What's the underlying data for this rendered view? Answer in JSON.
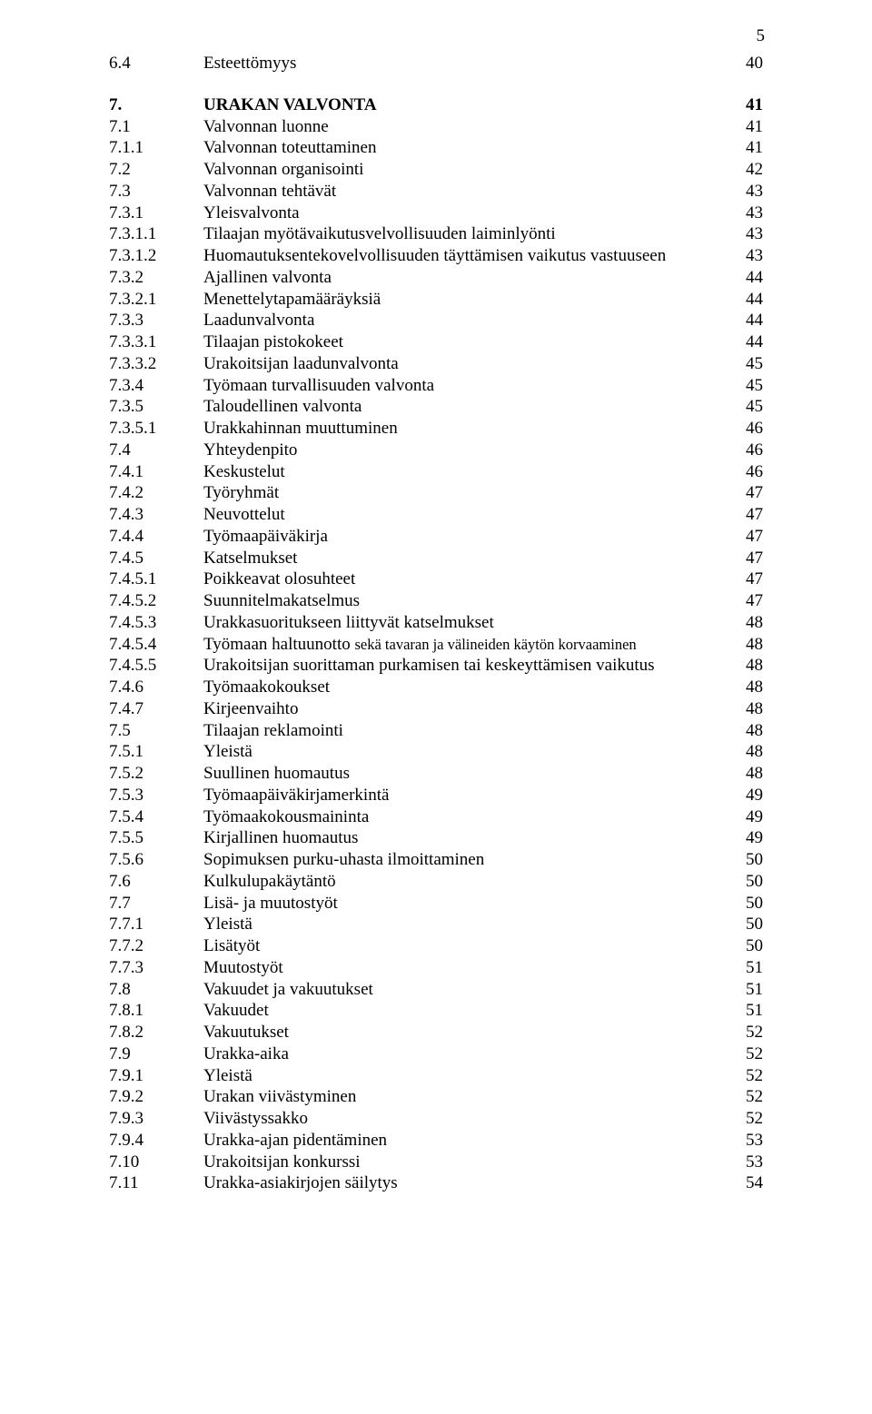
{
  "pageNumber": "5",
  "entries": [
    {
      "num": "6.4",
      "label": "Esteettömyys",
      "page": "40",
      "spaceBefore": false,
      "bold": false
    },
    {
      "num": "7.",
      "label": "URAKAN VALVONTA",
      "page": "41",
      "spaceBefore": true,
      "bold": true
    },
    {
      "num": "7.1",
      "label": "Valvonnan luonne",
      "page": "41",
      "spaceBefore": false,
      "bold": false
    },
    {
      "num": "7.1.1",
      "label": "Valvonnan toteuttaminen",
      "page": "41",
      "spaceBefore": false,
      "bold": false
    },
    {
      "num": "7.2",
      "label": "Valvonnan organisointi",
      "page": "42",
      "spaceBefore": false,
      "bold": false
    },
    {
      "num": "7.3",
      "label": "Valvonnan tehtävät",
      "page": "43",
      "spaceBefore": false,
      "bold": false
    },
    {
      "num": "7.3.1",
      "label": "Yleisvalvonta",
      "page": "43",
      "spaceBefore": false,
      "bold": false
    },
    {
      "num": "7.3.1.1",
      "label": "Tilaajan myötävaikutusvelvollisuuden laiminlyönti",
      "page": "43",
      "spaceBefore": false,
      "bold": false
    },
    {
      "num": "7.3.1.2",
      "label": "Huomautuksentekovelvollisuuden täyttämisen vaikutus vastuuseen",
      "page": "43",
      "spaceBefore": false,
      "bold": false
    },
    {
      "num": "7.3.2",
      "label": "Ajallinen valvonta",
      "page": "44",
      "spaceBefore": false,
      "bold": false
    },
    {
      "num": "7.3.2.1",
      "label": "Menettelytapamääräyksiä",
      "page": "44",
      "spaceBefore": false,
      "bold": false
    },
    {
      "num": "7.3.3",
      "label": "Laadunvalvonta",
      "page": "44",
      "spaceBefore": false,
      "bold": false
    },
    {
      "num": "7.3.3.1",
      "label": "Tilaajan pistokokeet",
      "page": "44",
      "spaceBefore": false,
      "bold": false
    },
    {
      "num": "7.3.3.2",
      "label": "Urakoitsijan laadunvalvonta",
      "page": "45",
      "spaceBefore": false,
      "bold": false
    },
    {
      "num": "7.3.4",
      "label": "Työmaan turvallisuuden valvonta",
      "page": "45",
      "spaceBefore": false,
      "bold": false
    },
    {
      "num": "7.3.5",
      "label": "Taloudellinen valvonta",
      "page": "45",
      "spaceBefore": false,
      "bold": false
    },
    {
      "num": "7.3.5.1",
      "label": "Urakkahinnan muuttuminen",
      "page": "46",
      "spaceBefore": false,
      "bold": false
    },
    {
      "num": "7.4",
      "label": "Yhteydenpito",
      "page": "46",
      "spaceBefore": false,
      "bold": false
    },
    {
      "num": "7.4.1",
      "label": "Keskustelut",
      "page": "46",
      "spaceBefore": false,
      "bold": false
    },
    {
      "num": "7.4.2",
      "label": "Työryhmät",
      "page": "47",
      "spaceBefore": false,
      "bold": false
    },
    {
      "num": "7.4.3",
      "label": "Neuvottelut",
      "page": "47",
      "spaceBefore": false,
      "bold": false
    },
    {
      "num": "7.4.4",
      "label": "Työmaapäiväkirja",
      "page": "47",
      "spaceBefore": false,
      "bold": false
    },
    {
      "num": "7.4.5",
      "label": "Katselmukset",
      "page": "47",
      "spaceBefore": false,
      "bold": false
    },
    {
      "num": "7.4.5.1",
      "label": "Poikkeavat olosuhteet",
      "page": "47",
      "spaceBefore": false,
      "bold": false
    },
    {
      "num": "7.4.5.2",
      "label": "Suunnitelmakatselmus",
      "page": "47",
      "spaceBefore": false,
      "bold": false
    },
    {
      "num": "7.4.5.3",
      "label": "Urakkasuoritukseen liittyvät katselmukset",
      "page": "48",
      "spaceBefore": false,
      "bold": false
    },
    {
      "num": "7.4.5.4",
      "label": "Työmaan haltuunotto <span class=\"small\">sekä tavaran ja välineiden käytön korvaaminen</span>",
      "page": "48",
      "spaceBefore": false,
      "bold": false
    },
    {
      "num": "7.4.5.5",
      "label": "Urakoitsijan suorittaman purkamisen tai keskeyttämisen vaikutus",
      "page": "48",
      "spaceBefore": false,
      "bold": false
    },
    {
      "num": "7.4.6",
      "label": "Työmaakokoukset",
      "page": "48",
      "spaceBefore": false,
      "bold": false
    },
    {
      "num": "7.4.7",
      "label": "Kirjeenvaihto",
      "page": "48",
      "spaceBefore": false,
      "bold": false
    },
    {
      "num": "7.5",
      "label": "Tilaajan reklamointi",
      "page": "48",
      "spaceBefore": false,
      "bold": false
    },
    {
      "num": "7.5.1",
      "label": "Yleistä",
      "page": "48",
      "spaceBefore": false,
      "bold": false
    },
    {
      "num": "7.5.2",
      "label": "Suullinen huomautus",
      "page": "48",
      "spaceBefore": false,
      "bold": false
    },
    {
      "num": "7.5.3",
      "label": "Työmaapäiväkirjamerkintä",
      "page": "49",
      "spaceBefore": false,
      "bold": false
    },
    {
      "num": "7.5.4",
      "label": "Työmaakokousmaininta",
      "page": "49",
      "spaceBefore": false,
      "bold": false
    },
    {
      "num": "7.5.5",
      "label": "Kirjallinen huomautus",
      "page": "49",
      "spaceBefore": false,
      "bold": false
    },
    {
      "num": "7.5.6",
      "label": "Sopimuksen purku-uhasta ilmoittaminen",
      "page": "50",
      "spaceBefore": false,
      "bold": false
    },
    {
      "num": "7.6",
      "label": "Kulkulupakäytäntö",
      "page": "50",
      "spaceBefore": false,
      "bold": false
    },
    {
      "num": "7.7",
      "label": "Lisä- ja muutostyöt",
      "page": "50",
      "spaceBefore": false,
      "bold": false
    },
    {
      "num": "7.7.1",
      "label": "Yleistä",
      "page": "50",
      "spaceBefore": false,
      "bold": false
    },
    {
      "num": "7.7.2",
      "label": "Lisätyöt",
      "page": "50",
      "spaceBefore": false,
      "bold": false
    },
    {
      "num": "7.7.3",
      "label": "Muutostyöt",
      "page": "51",
      "spaceBefore": false,
      "bold": false
    },
    {
      "num": "7.8",
      "label": "Vakuudet ja vakuutukset",
      "page": "51",
      "spaceBefore": false,
      "bold": false
    },
    {
      "num": "7.8.1",
      "label": "Vakuudet",
      "page": "51",
      "spaceBefore": false,
      "bold": false
    },
    {
      "num": "7.8.2",
      "label": "Vakuutukset",
      "page": "52",
      "spaceBefore": false,
      "bold": false
    },
    {
      "num": "7.9",
      "label": "Urakka-aika",
      "page": "52",
      "spaceBefore": false,
      "bold": false
    },
    {
      "num": "7.9.1",
      "label": "Yleistä",
      "page": "52",
      "spaceBefore": false,
      "bold": false
    },
    {
      "num": "7.9.2",
      "label": "Urakan viivästyminen",
      "page": "52",
      "spaceBefore": false,
      "bold": false
    },
    {
      "num": "7.9.3",
      "label": "Viivästyssakko",
      "page": "52",
      "spaceBefore": false,
      "bold": false
    },
    {
      "num": "7.9.4",
      "label": "Urakka-ajan pidentäminen",
      "page": "53",
      "spaceBefore": false,
      "bold": false
    },
    {
      "num": "7.10",
      "label": "Urakoitsijan konkurssi",
      "page": "53",
      "spaceBefore": false,
      "bold": false
    },
    {
      "num": "7.11",
      "label": "Urakka-asiakirjojen säilytys",
      "page": "54",
      "spaceBefore": false,
      "bold": false
    }
  ]
}
